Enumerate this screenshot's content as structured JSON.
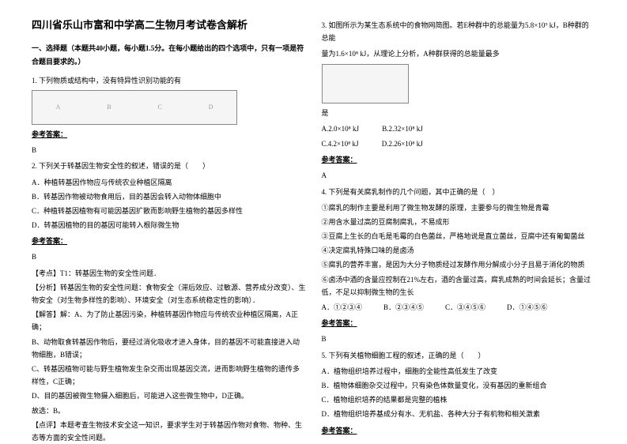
{
  "title": "四川省乐山市富和中学高二生物月考试卷含解析",
  "section1_head": "一、选择题（本题共40小题，每小题1.5分。在每小题给出的四个选项中，只有一项是符合题目要求的。）",
  "q1": {
    "stem": "1. 下列物质或结构中，没有特异性识别功能的有",
    "labels": [
      "A",
      "B",
      "C",
      "D"
    ],
    "ans_label": "参考答案：",
    "ans": "B"
  },
  "q2": {
    "stem": "2. 下列关于转基因生物安全性的叙述，错误的是（　　）",
    "optA": "A．种植转基因作物应与传统农业种植区隔离",
    "optB": "B．转基因作物被动物食用后，目的基因会转入动物体细胞中",
    "optC": "C．种植转基因植物有可能因基因扩散而影响野生植物的基因多样性",
    "optD": "D．转基因植物的目的基因可能转入根际微生物",
    "ans_label": "参考答案：",
    "ans": "B",
    "kd": "【考点】T1：转基因生物的安全性问题．",
    "fx": "【分析】转基因生物的安全性问题：食物安全（滞后效应、过敏源、营养成分改变）、生物安全（对生物多样性的影响）、环境安全（对生态系统稳定性的影响）．",
    "jd1": "【解答】解：A、为了防止基因污染，种植转基因作物应与传统农业种植区隔离，A正确；",
    "jd2": "B、动物取食转基因作物后，要经过消化吸收才进入身体，目的基因不可能直接进入动物细胞，B错误；",
    "jd3": "C、转基因植物可能与野生植物发生杂交而出现基因交流，进而影响野生植物的遗传多样性，C正确；",
    "jd4": "D、目的基因被微生物摄入细胞后，可能进入这些微生物中，D正确。",
    "jd5": "故选：B。",
    "dp": "【点评】本题考查生物技术安全这一知识，要求学生对于转基因作物对食物、物种、生态等方面的安全性问题。"
  },
  "q3": {
    "stem1": "3. 如图所示为某生态系统中的食物网简图。若E种群中的总能量为5.8×10⁹ kJ，B种群的总能",
    "stem2": "量为1.6×10⁸ kJ，从理论上分析，A种群获得的总能量最多",
    "stem3": "是",
    "optA": "A.2.0×10⁸ kJ",
    "optB": "B.2.32×10⁸ kJ",
    "optC": "C.4.2×10⁸ kJ",
    "optD": "D.2.26×10⁸ kJ",
    "ans_label": "参考答案：",
    "ans": "A"
  },
  "q4": {
    "stem": "4. 下列是有关腐乳制作的几个问题，其中正确的是（　）",
    "s1": "①腐乳的制作主要是利用了微生物发酵的原理，主要参与的微生物是青霉",
    "s2": "②用含水量过高的豆腐制腐乳，不易成形",
    "s3": "③豆腐上生长的白毛是毛霉的白色菌丝，严格地说是直立菌丝，豆腐中还有匍匐菌丝",
    "s4": "④决定腐乳特殊口味的是卤汤",
    "s5": "⑤腐乳的营养丰富，是因为大分子物质经过发酵作用分解成小分子且易于消化的物质",
    "s6": "⑥卤汤中酒的含量应控制在21%左右，酒的含量过高，腐乳成熟的时间会延长；含量过低，不足以抑制微生物的生长",
    "opts": "A．①②③④　　　B．②③④⑤　　　C．③④⑤⑥　　　D．①④⑤⑥",
    "ans_label": "参考答案：",
    "ans": "B"
  },
  "q5": {
    "stem": "5. 下列有关植物细胞工程的叙述，正确的是（　　）",
    "optA": "A．植物组织培养过程中，细胞的全能性高低发生了改变",
    "optB": "B．植物体细胞杂交过程中，只有染色体数量变化，没有基因的重新组合",
    "optC": "C．植物组织培养的结果都是完整的植株",
    "optD": "D．植物组织培养基成分有水、无机盐、各种大分子有机物和相关激素",
    "ans_label": "参考答案："
  }
}
